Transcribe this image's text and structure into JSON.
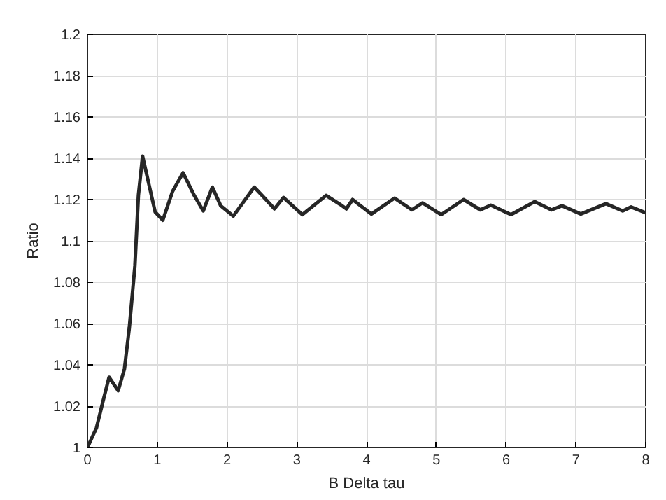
{
  "chart_data": {
    "type": "line",
    "xlabel": "B Delta tau",
    "ylabel": "Ratio",
    "xlim": [
      0,
      8
    ],
    "ylim": [
      1,
      1.2
    ],
    "xticks": [
      0,
      1,
      2,
      3,
      4,
      5,
      6,
      7,
      8
    ],
    "yticks": [
      1,
      1.02,
      1.04,
      1.06,
      1.08,
      1.1,
      1.12,
      1.14,
      1.16,
      1.18,
      1.2
    ],
    "grid": true,
    "marker": "none",
    "line_style": "solid",
    "series": [
      {
        "color": "#262626",
        "x": [
          0,
          0.13,
          0.22,
          0.31,
          0.44,
          0.53,
          0.6,
          0.68,
          0.73,
          0.79,
          0.87,
          0.97,
          1.08,
          1.22,
          1.37,
          1.53,
          1.66,
          1.79,
          1.91,
          2.09,
          2.39,
          2.53,
          2.68,
          2.81,
          3.08,
          3.42,
          3.62,
          3.71,
          3.8,
          4.07,
          4.4,
          4.65,
          4.8,
          5.07,
          5.39,
          5.63,
          5.78,
          6.07,
          6.41,
          6.65,
          6.8,
          7.07,
          7.43,
          7.67,
          7.79,
          8.0
        ],
        "values": [
          1.0,
          1.0096,
          1.022,
          1.034,
          1.0275,
          1.038,
          1.058,
          1.088,
          1.122,
          1.141,
          1.129,
          1.114,
          1.11,
          1.124,
          1.133,
          1.122,
          1.1145,
          1.126,
          1.117,
          1.112,
          1.126,
          1.121,
          1.1155,
          1.121,
          1.1127,
          1.122,
          1.1177,
          1.1155,
          1.12,
          1.113,
          1.1207,
          1.115,
          1.1184,
          1.1127,
          1.12,
          1.115,
          1.1173,
          1.1127,
          1.119,
          1.115,
          1.117,
          1.113,
          1.118,
          1.1145,
          1.1164,
          1.1136
        ]
      }
    ]
  }
}
